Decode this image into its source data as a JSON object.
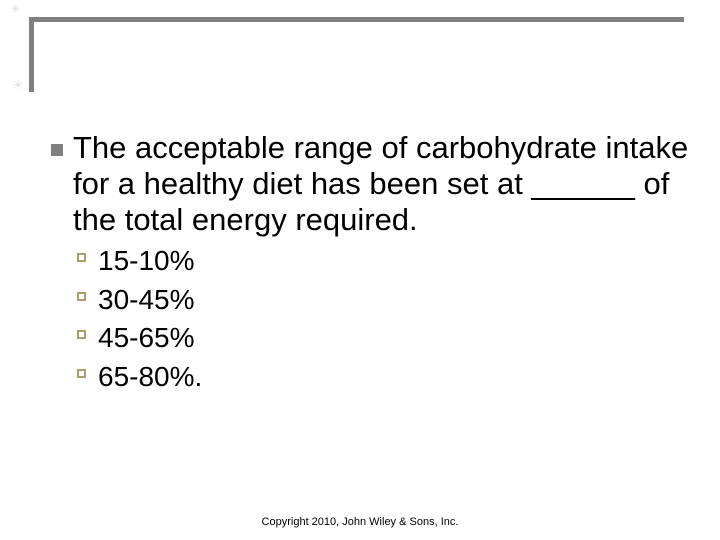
{
  "colors": {
    "background": "#ffffff",
    "text": "#000000",
    "border_gray": "#7f7f7f",
    "bullet_gray": "#7f7f7f",
    "option_square_tan": "#a79f66",
    "sparkle_gray": "#dcdcdc"
  },
  "decor": {
    "sparkle_glyph": "✳"
  },
  "question": {
    "lines": [
      "The acceptable range of carbohydrate intake",
      "for a healthy diet has been set at ______ of",
      "the total energy required."
    ]
  },
  "options": [
    "15-10%",
    "30-45%",
    "45-65%",
    "65-80%."
  ],
  "footer": {
    "copyright_text": "Copyright 2010, John Wiley & Sons, Inc."
  }
}
